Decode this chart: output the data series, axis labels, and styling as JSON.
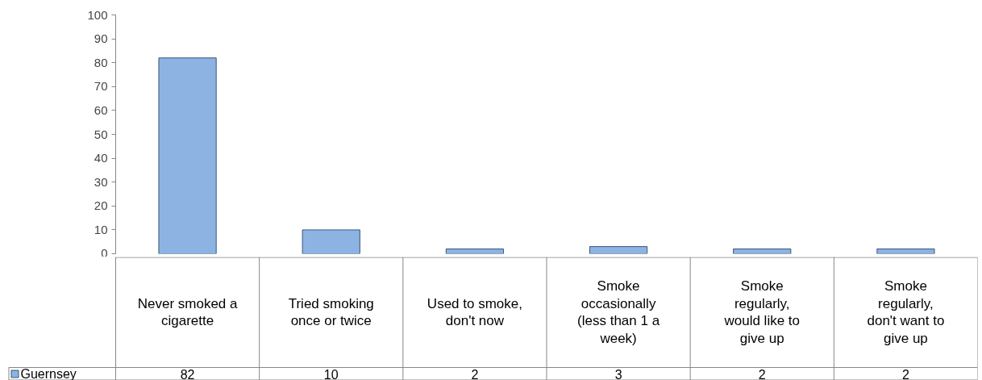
{
  "chart_data": {
    "type": "bar",
    "categories": [
      "Never smoked a cigarette",
      "Tried smoking once or twice",
      "Used to smoke, don't now",
      "Smoke occasionally (less than 1 a week)",
      "Smoke regularly, would like to give up",
      "Smoke regularly, don't want to give up"
    ],
    "series": [
      {
        "name": "Guernsey",
        "color": "#8db3e2",
        "values": [
          82,
          10,
          2,
          3,
          2,
          2
        ]
      }
    ],
    "ylim": [
      0,
      100
    ],
    "yticks": [
      0,
      10,
      20,
      30,
      40,
      50,
      60,
      70,
      80,
      90,
      100
    ],
    "data_labels": true,
    "legend": "bottom"
  }
}
